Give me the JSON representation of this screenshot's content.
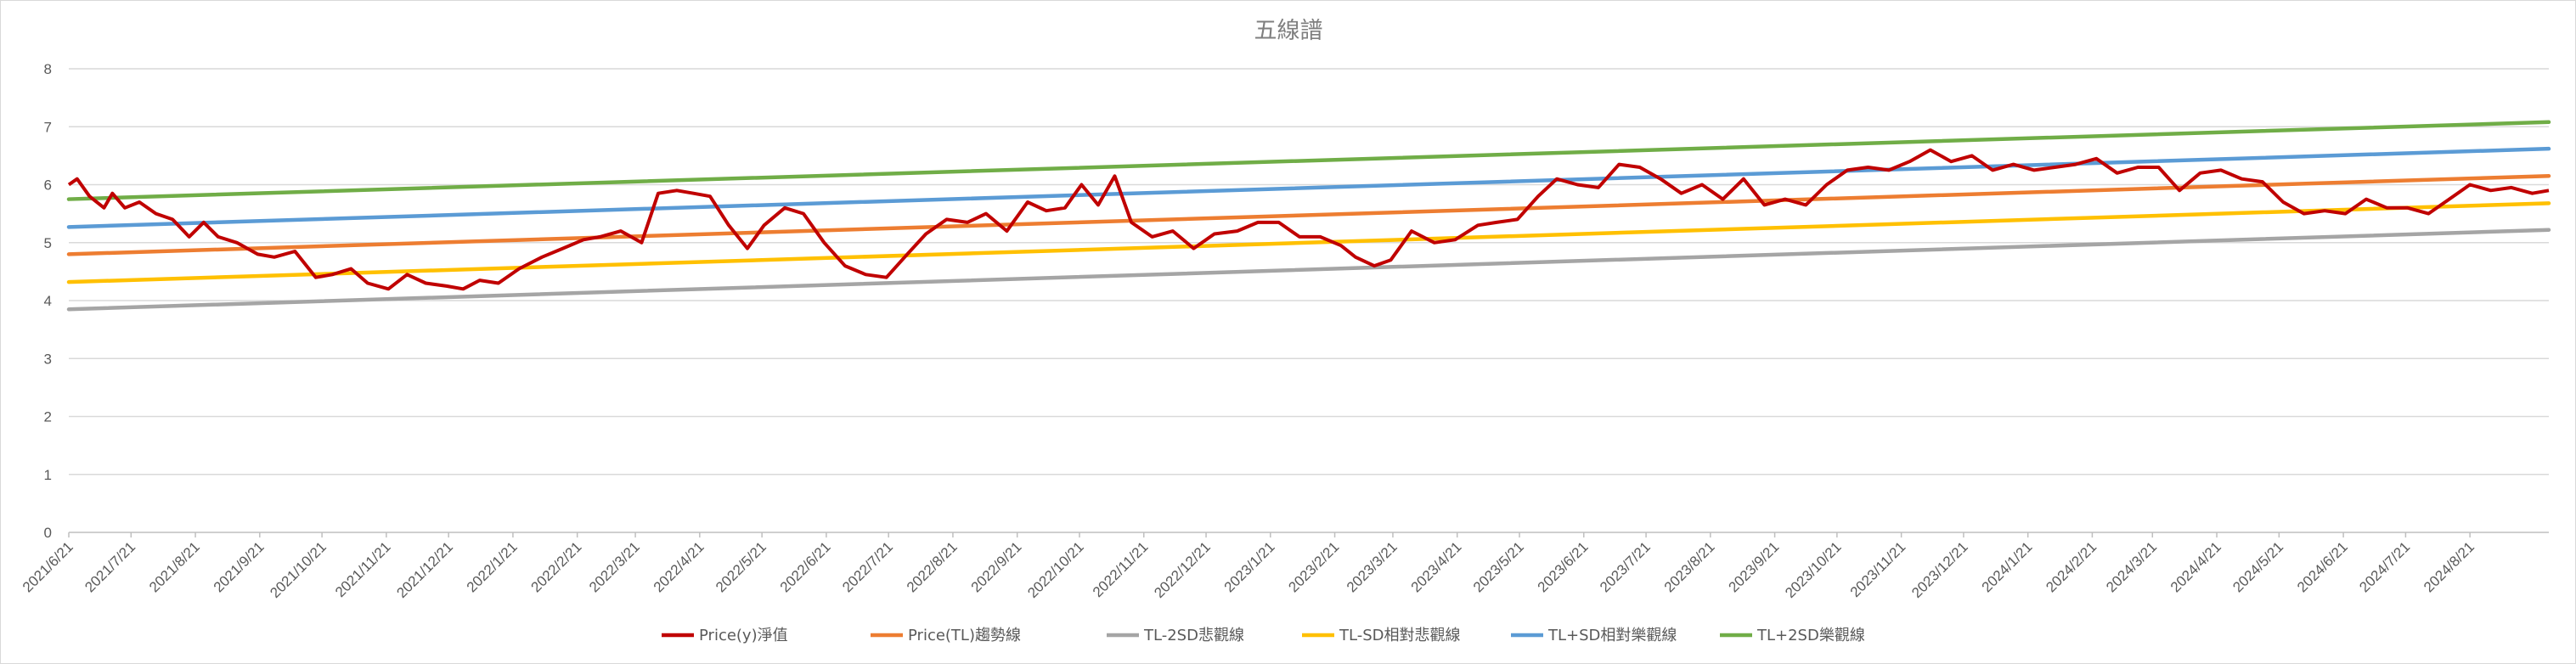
{
  "chart_data": {
    "type": "line",
    "title": "五線譜",
    "xlabel": "",
    "ylabel": "",
    "ylim": [
      0,
      8
    ],
    "yticks": [
      0,
      1,
      2,
      3,
      4,
      5,
      6,
      7,
      8
    ],
    "grid": "horizontal",
    "legend_position": "bottom",
    "x_tick_labels": [
      "2021/6/21",
      "2021/7/21",
      "2021/8/21",
      "2021/9/21",
      "2021/10/21",
      "2021/11/21",
      "2021/12/21",
      "2022/1/21",
      "2022/2/21",
      "2022/3/21",
      "2022/4/21",
      "2022/5/21",
      "2022/6/21",
      "2022/7/21",
      "2022/8/21",
      "2022/9/21",
      "2022/10/21",
      "2022/11/21",
      "2022/12/21",
      "2023/1/21",
      "2023/2/21",
      "2023/3/21",
      "2023/4/21",
      "2023/5/21",
      "2023/6/21",
      "2023/7/21",
      "2023/8/21",
      "2023/9/21",
      "2023/10/21",
      "2023/11/21",
      "2023/12/21",
      "2024/1/21",
      "2024/2/21",
      "2024/3/21",
      "2024/4/21",
      "2024/5/21",
      "2024/6/21",
      "2024/7/21",
      "2024/8/21"
    ],
    "x_range": [
      "2021/6/21",
      "2024/9/28"
    ],
    "series": [
      {
        "name": "Price(y)淨值",
        "color": "#c00000",
        "x": [
          "2021/6/21",
          "2021/6/25",
          "2021/7/1",
          "2021/7/8",
          "2021/7/12",
          "2021/7/18",
          "2021/7/25",
          "2021/8/2",
          "2021/8/10",
          "2021/8/18",
          "2021/8/25",
          "2021/9/1",
          "2021/9/10",
          "2021/9/20",
          "2021/9/28",
          "2021/10/8",
          "2021/10/18",
          "2021/10/26",
          "2021/11/4",
          "2021/11/12",
          "2021/11/22",
          "2021/12/1",
          "2021/12/10",
          "2021/12/20",
          "2021/12/28",
          "2022/1/5",
          "2022/1/14",
          "2022/1/24",
          "2022/2/4",
          "2022/2/14",
          "2022/2/24",
          "2022/3/4",
          "2022/3/14",
          "2022/3/24",
          "2022/4/1",
          "2022/4/10",
          "2022/4/18",
          "2022/4/26",
          "2022/5/5",
          "2022/5/14",
          "2022/5/22",
          "2022/6/1",
          "2022/6/10",
          "2022/6/20",
          "2022/6/30",
          "2022/7/10",
          "2022/7/20",
          "2022/7/30",
          "2022/8/8",
          "2022/8/18",
          "2022/8/28",
          "2022/9/6",
          "2022/9/16",
          "2022/9/26",
          "2022/10/5",
          "2022/10/14",
          "2022/10/22",
          "2022/10/30",
          "2022/11/7",
          "2022/11/15",
          "2022/11/25",
          "2022/12/5",
          "2022/12/15",
          "2022/12/25",
          "2023/1/5",
          "2023/1/15",
          "2023/1/25",
          "2023/2/4",
          "2023/2/14",
          "2023/2/24",
          "2023/3/3",
          "2023/3/12",
          "2023/3/20",
          "2023/3/30",
          "2023/4/10",
          "2023/4/20",
          "2023/5/1",
          "2023/5/10",
          "2023/5/20",
          "2023/5/30",
          "2023/6/8",
          "2023/6/18",
          "2023/6/28",
          "2023/7/8",
          "2023/7/18",
          "2023/7/28",
          "2023/8/7",
          "2023/8/17",
          "2023/8/27",
          "2023/9/6",
          "2023/9/16",
          "2023/9/26",
          "2023/10/6",
          "2023/10/16",
          "2023/10/26",
          "2023/11/5",
          "2023/11/15",
          "2023/11/25",
          "2023/12/5",
          "2023/12/15",
          "2023/12/25",
          "2024/1/4",
          "2024/1/14",
          "2024/1/24",
          "2024/2/3",
          "2024/2/13",
          "2024/2/23",
          "2024/3/4",
          "2024/3/14",
          "2024/3/24",
          "2024/4/3",
          "2024/4/13",
          "2024/4/23",
          "2024/5/3",
          "2024/5/13",
          "2024/5/23",
          "2024/6/2",
          "2024/6/12",
          "2024/6/22",
          "2024/7/2",
          "2024/7/12",
          "2024/7/22",
          "2024/8/1",
          "2024/8/11",
          "2024/8/21",
          "2024/8/31",
          "2024/9/10",
          "2024/9/20",
          "2024/9/28"
        ],
        "values": [
          6.0,
          6.1,
          5.8,
          5.6,
          5.85,
          5.6,
          5.7,
          5.5,
          5.4,
          5.1,
          5.35,
          5.1,
          5.0,
          4.8,
          4.75,
          4.85,
          4.4,
          4.45,
          4.55,
          4.3,
          4.2,
          4.45,
          4.3,
          4.25,
          4.2,
          4.35,
          4.3,
          4.55,
          4.75,
          4.9,
          5.05,
          5.1,
          5.2,
          5.0,
          5.85,
          5.9,
          5.85,
          5.8,
          5.3,
          4.9,
          5.3,
          5.6,
          5.5,
          5.0,
          4.6,
          4.45,
          4.4,
          4.8,
          5.15,
          5.4,
          5.35,
          5.5,
          5.2,
          5.7,
          5.55,
          5.6,
          6.0,
          5.65,
          6.15,
          5.35,
          5.1,
          5.2,
          4.9,
          5.15,
          5.2,
          5.35,
          5.35,
          5.1,
          5.1,
          4.95,
          4.75,
          4.6,
          4.7,
          5.2,
          5.0,
          5.05,
          5.3,
          5.35,
          5.4,
          5.8,
          6.1,
          6.0,
          5.95,
          6.35,
          6.3,
          6.1,
          5.85,
          6.0,
          5.75,
          6.1,
          5.65,
          5.75,
          5.65,
          6.0,
          6.25,
          6.3,
          6.25,
          6.4,
          6.6,
          6.4,
          6.5,
          6.25,
          6.35,
          6.25,
          6.3,
          6.35,
          6.45,
          6.2,
          6.3,
          6.3,
          5.9,
          6.2,
          6.25,
          6.1,
          6.05,
          5.7,
          5.5,
          5.55,
          5.5,
          5.75,
          5.6,
          5.6,
          5.5,
          5.75,
          6.0,
          5.9,
          5.95,
          5.85,
          5.9
        ]
      },
      {
        "name": "Price(TL)趨勢線",
        "color": "#ed7d31",
        "start": 4.8,
        "end": 6.15
      },
      {
        "name": "TL-2SD悲觀線",
        "color": "#a5a5a5",
        "start": 3.85,
        "end": 5.22
      },
      {
        "name": "TL-SD相對悲觀線",
        "color": "#ffc000",
        "start": 4.32,
        "end": 5.68
      },
      {
        "name": "TL+SD相對樂觀線",
        "color": "#5b9bd5",
        "start": 5.27,
        "end": 6.62
      },
      {
        "name": "TL+2SD樂觀線",
        "color": "#70ad47",
        "start": 5.75,
        "end": 7.08
      }
    ]
  }
}
